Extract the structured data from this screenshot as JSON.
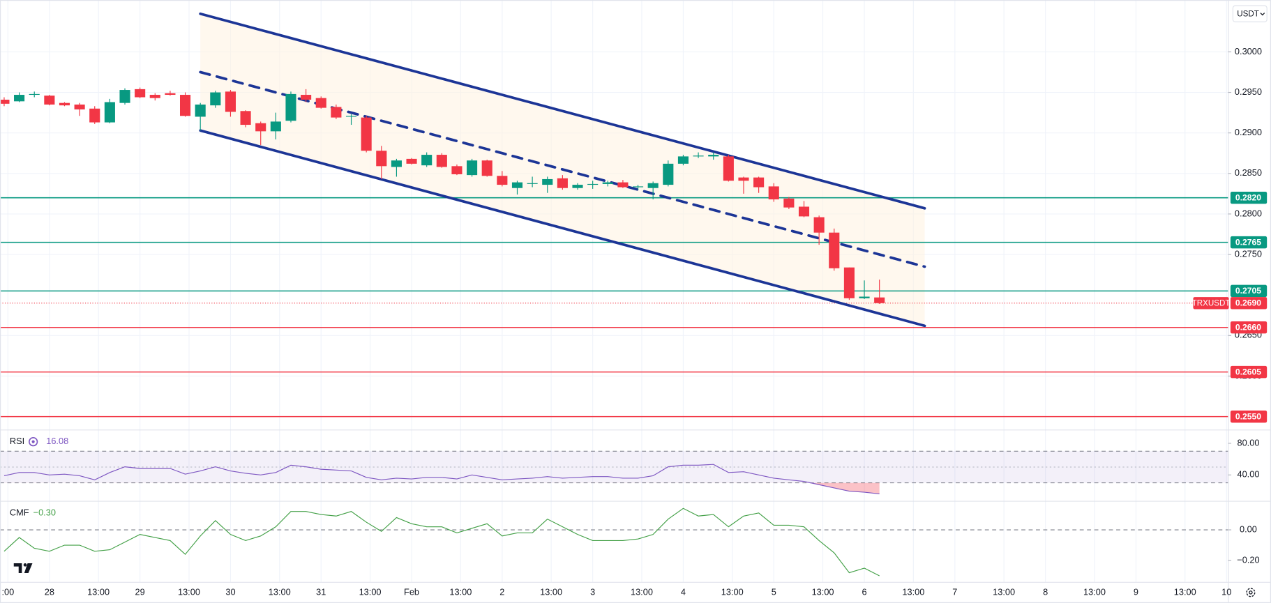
{
  "ui": {
    "currency_button": "USDT"
  },
  "chart_data": [
    {
      "type": "candlestick",
      "symbol": "TRXUSDT",
      "x": [
        -12,
        -8,
        -4,
        0,
        4,
        8,
        12,
        16,
        20,
        24,
        28,
        32,
        36,
        40,
        44,
        48,
        52,
        56,
        60,
        64,
        68,
        72,
        76,
        80,
        84,
        88,
        92,
        96,
        100,
        104,
        108,
        112,
        116,
        120,
        124,
        128,
        132,
        136,
        140,
        144,
        148,
        152,
        156,
        160,
        164,
        168,
        172,
        176,
        180,
        184,
        188,
        192,
        196,
        200,
        204,
        208,
        212,
        216,
        220
      ],
      "open": [
        0.2941,
        0.2939,
        0.2947,
        0.2946,
        0.2937,
        0.2935,
        0.293,
        0.2913,
        0.2937,
        0.2954,
        0.2947,
        0.2949,
        0.2947,
        0.292,
        0.2934,
        0.2951,
        0.2927,
        0.2912,
        0.2902,
        0.2915,
        0.2947,
        0.2943,
        0.2932,
        0.292,
        0.2919,
        0.2878,
        0.2858,
        0.2868,
        0.286,
        0.2873,
        0.2859,
        0.2848,
        0.2866,
        0.2847,
        0.2832,
        0.2837,
        0.2836,
        0.2844,
        0.2832,
        0.2836,
        0.2837,
        0.2839,
        0.2833,
        0.2832,
        0.2836,
        0.2862,
        0.2871,
        0.2871,
        0.2871,
        0.2845,
        0.2845,
        0.2834,
        0.2819,
        0.2809,
        0.2796,
        0.2777,
        0.2734,
        0.2696,
        0.2697
      ],
      "high": [
        0.2944,
        0.295,
        0.2951,
        0.2947,
        0.2938,
        0.2937,
        0.2933,
        0.2942,
        0.2955,
        0.2956,
        0.2949,
        0.2952,
        0.295,
        0.2937,
        0.2952,
        0.2953,
        0.2928,
        0.2914,
        0.2925,
        0.2951,
        0.2954,
        0.2945,
        0.2935,
        0.2923,
        0.2921,
        0.2884,
        0.2868,
        0.2869,
        0.2876,
        0.2875,
        0.2861,
        0.2868,
        0.2867,
        0.2853,
        0.2841,
        0.2846,
        0.2846,
        0.2848,
        0.2838,
        0.2841,
        0.2841,
        0.2842,
        0.2836,
        0.284,
        0.2866,
        0.2873,
        0.2876,
        0.2876,
        0.2873,
        0.2846,
        0.2846,
        0.2838,
        0.2821,
        0.2816,
        0.2798,
        0.2782,
        0.2734,
        0.2718,
        0.2719
      ],
      "low": [
        0.2933,
        0.2938,
        0.2944,
        0.2934,
        0.2933,
        0.2921,
        0.2911,
        0.2912,
        0.2935,
        0.2943,
        0.294,
        0.2946,
        0.292,
        0.2903,
        0.2931,
        0.292,
        0.2907,
        0.2885,
        0.2892,
        0.2913,
        0.2938,
        0.293,
        0.2917,
        0.291,
        0.2876,
        0.2843,
        0.2846,
        0.2861,
        0.2858,
        0.2857,
        0.2848,
        0.2846,
        0.2846,
        0.2834,
        0.2824,
        0.2833,
        0.2826,
        0.283,
        0.283,
        0.2831,
        0.2834,
        0.2832,
        0.283,
        0.2818,
        0.2834,
        0.286,
        0.2869,
        0.2867,
        0.284,
        0.2825,
        0.2826,
        0.2815,
        0.2806,
        0.2796,
        0.2762,
        0.273,
        0.2694,
        0.2695,
        0.2689
      ],
      "close": [
        0.2936,
        0.2947,
        0.2948,
        0.2935,
        0.2934,
        0.2929,
        0.2913,
        0.2938,
        0.2953,
        0.2944,
        0.2943,
        0.2947,
        0.2921,
        0.2935,
        0.295,
        0.2926,
        0.291,
        0.2902,
        0.2914,
        0.2948,
        0.2941,
        0.2931,
        0.2919,
        0.2921,
        0.2878,
        0.2859,
        0.2866,
        0.2862,
        0.2873,
        0.2858,
        0.2849,
        0.2866,
        0.2847,
        0.2836,
        0.2839,
        0.2838,
        0.2843,
        0.2832,
        0.2836,
        0.2837,
        0.2839,
        0.2833,
        0.2834,
        0.2838,
        0.2862,
        0.2871,
        0.2872,
        0.2873,
        0.2841,
        0.2841,
        0.2833,
        0.2818,
        0.2808,
        0.2797,
        0.2777,
        0.2733,
        0.2696,
        0.2698,
        0.269
      ],
      "up_color": "#089981",
      "down_color": "#f23645",
      "xlim": [
        -13.1,
        312.4
      ],
      "xticks": [
        {
          "value": -11,
          "label": ":00"
        },
        {
          "value": 0,
          "label": "28"
        },
        {
          "value": 13,
          "label": "13:00"
        },
        {
          "value": 24,
          "label": "29"
        },
        {
          "value": 37,
          "label": "13:00"
        },
        {
          "value": 48,
          "label": "30"
        },
        {
          "value": 61,
          "label": "13:00"
        },
        {
          "value": 72,
          "label": "31"
        },
        {
          "value": 85,
          "label": "13:00"
        },
        {
          "value": 96,
          "label": "Feb"
        },
        {
          "value": 109,
          "label": "13:00"
        },
        {
          "value": 120,
          "label": "2"
        },
        {
          "value": 133,
          "label": "13:00"
        },
        {
          "value": 144,
          "label": "3"
        },
        {
          "value": 157,
          "label": "13:00"
        },
        {
          "value": 168,
          "label": "4"
        },
        {
          "value": 181,
          "label": "13:00"
        },
        {
          "value": 192,
          "label": "5"
        },
        {
          "value": 205,
          "label": "13:00"
        },
        {
          "value": 216,
          "label": "6"
        },
        {
          "value": 229,
          "label": "13:00"
        },
        {
          "value": 240,
          "label": "7"
        },
        {
          "value": 253,
          "label": "13:00"
        },
        {
          "value": 264,
          "label": "8"
        },
        {
          "value": 277,
          "label": "13:00"
        },
        {
          "value": 288,
          "label": "9"
        },
        {
          "value": 301,
          "label": "13:00"
        },
        {
          "value": 312,
          "label": "10"
        }
      ],
      "ylim": [
        0.2534,
        0.3064
      ],
      "yticks": [
        {
          "value": 0.3,
          "label": "0.3000"
        },
        {
          "value": 0.295,
          "label": "0.2950"
        },
        {
          "value": 0.29,
          "label": "0.2900"
        },
        {
          "value": 0.285,
          "label": "0.2850"
        },
        {
          "value": 0.28,
          "label": "0.2800"
        },
        {
          "value": 0.275,
          "label": "0.2750"
        },
        {
          "value": 0.265,
          "label": "0.2650"
        },
        {
          "value": 0.26,
          "label": "0.2600"
        }
      ],
      "grid": true,
      "last_price": 0.269,
      "last_price_label": "0.2690",
      "levels": [
        {
          "value": 0.282,
          "label": "0.2820",
          "color": "#089981"
        },
        {
          "value": 0.2765,
          "label": "0.2765",
          "color": "#089981"
        },
        {
          "value": 0.2705,
          "label": "0.2705",
          "color": "#089981"
        },
        {
          "value": 0.266,
          "label": "0.2660",
          "color": "#f23645"
        },
        {
          "value": 0.2605,
          "label": "0.2605",
          "color": "#f23645"
        },
        {
          "value": 0.255,
          "label": "0.2550",
          "color": "#f23645"
        }
      ],
      "channel": {
        "color": "#1c3596",
        "x": [
          40,
          232
        ],
        "upper": [
          0.3047,
          0.2807
        ],
        "middle": [
          0.2975,
          0.2735
        ],
        "lower": [
          0.2903,
          0.2662
        ]
      }
    },
    {
      "type": "line",
      "title": "RSI",
      "color": "#7e57c2",
      "x": [
        -12,
        -8,
        -4,
        0,
        4,
        8,
        12,
        16,
        20,
        24,
        28,
        32,
        36,
        40,
        44,
        48,
        52,
        56,
        60,
        64,
        68,
        72,
        76,
        80,
        84,
        88,
        92,
        96,
        100,
        104,
        108,
        112,
        116,
        120,
        124,
        128,
        132,
        136,
        140,
        144,
        148,
        152,
        156,
        160,
        164,
        168,
        172,
        176,
        180,
        184,
        188,
        192,
        196,
        200,
        204,
        208,
        212,
        216,
        220
      ],
      "values": [
        39,
        43.1,
        43.1,
        40,
        41,
        39,
        33.8,
        43.1,
        50.3,
        48.2,
        48.2,
        48.2,
        41,
        45.1,
        50.3,
        45.1,
        42.1,
        40,
        43.1,
        52.3,
        50.3,
        47.2,
        46.2,
        45.1,
        36.9,
        33.8,
        35.9,
        34.9,
        36.9,
        36.9,
        34.9,
        40,
        36.9,
        33.8,
        34.9,
        35.9,
        37.9,
        35.9,
        36.9,
        37.9,
        37.9,
        35.9,
        35.9,
        39,
        50.3,
        52.3,
        52.3,
        53.3,
        43.1,
        44.1,
        40,
        35.9,
        33.8,
        31.8,
        27.7,
        23.6,
        19.5,
        18.2,
        16.08
      ],
      "ylim": [
        7.2,
        97.4
      ],
      "yticks": [
        {
          "value": 80,
          "label": "80.00"
        },
        {
          "value": 40,
          "label": "40.00"
        }
      ],
      "band": [
        30,
        70
      ],
      "midline": 50
    },
    {
      "type": "line",
      "title": "CMF",
      "color": "#43a047",
      "x": [
        -12,
        -8,
        -4,
        0,
        4,
        8,
        12,
        16,
        20,
        24,
        28,
        32,
        36,
        40,
        44,
        48,
        52,
        56,
        60,
        64,
        68,
        72,
        76,
        80,
        84,
        88,
        92,
        96,
        100,
        104,
        108,
        112,
        116,
        120,
        124,
        128,
        132,
        136,
        140,
        144,
        148,
        152,
        156,
        160,
        164,
        168,
        172,
        176,
        180,
        184,
        188,
        192,
        196,
        200,
        204,
        208,
        212,
        216,
        220
      ],
      "values": [
        -0.14,
        -0.05,
        -0.12,
        -0.14,
        -0.1,
        -0.1,
        -0.14,
        -0.13,
        -0.08,
        -0.03,
        -0.05,
        -0.07,
        -0.16,
        -0.04,
        0.06,
        -0.03,
        -0.07,
        -0.04,
        0.02,
        0.12,
        0.12,
        0.1,
        0.09,
        0.12,
        0.05,
        -0.01,
        0.08,
        0.04,
        0.02,
        0.02,
        -0.02,
        0.01,
        0.04,
        -0.04,
        -0.02,
        -0.02,
        0.07,
        0.02,
        -0.03,
        -0.07,
        -0.07,
        -0.07,
        -0.06,
        -0.03,
        0.07,
        0.14,
        0.09,
        0.1,
        0.02,
        0.09,
        0.11,
        0.03,
        0.03,
        0.02,
        -0.07,
        -0.15,
        -0.28,
        -0.25,
        -0.3
      ],
      "value_label": "−0.30",
      "ylim": [
        -0.34,
        0.189
      ],
      "yticks": [
        {
          "value": 0,
          "label": "0.00"
        },
        {
          "value": -0.2,
          "label": "−0.20"
        }
      ],
      "zero_line": 0
    }
  ]
}
